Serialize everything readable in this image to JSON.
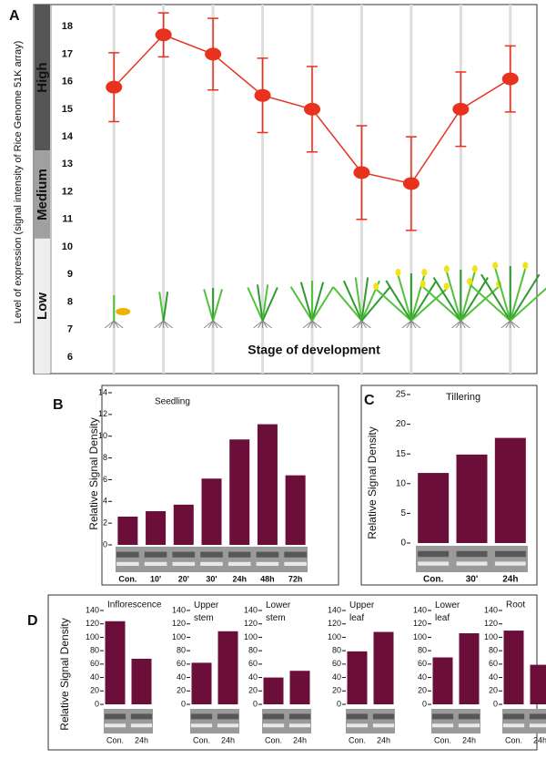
{
  "chart_data": [
    {
      "type": "line",
      "panel": "A",
      "ylabel": "Level of expression (signal intensity of Rice Genome 51K array)",
      "xlabel": "Stage of development",
      "categories": [
        null,
        null,
        null,
        null,
        null,
        null,
        null,
        null,
        null
      ],
      "series": [
        {
          "color": "#e8321e",
          "values": [
            15.8,
            17.7,
            17.0,
            15.5,
            15.0,
            12.7,
            12.3,
            15.0,
            16.1
          ],
          "errors": [
            1.25,
            0.8,
            1.3,
            1.35,
            1.55,
            1.7,
            1.7,
            1.35,
            1.2
          ]
        }
      ],
      "ylim": [
        5.4,
        18.8
      ],
      "yticks": [
        6,
        7,
        8,
        9,
        10,
        11,
        12,
        13,
        14,
        15,
        16,
        17,
        18
      ],
      "levels": [
        {
          "label": "High",
          "range": [
            13.5,
            18.8
          ],
          "color": "#555555"
        },
        {
          "label": "Medium",
          "range": [
            10.3,
            13.5
          ],
          "color": "#a0a0a0"
        },
        {
          "label": "Low",
          "range": [
            5.4,
            10.3
          ],
          "color": "#eeeeee"
        }
      ]
    },
    {
      "type": "bar",
      "panel": "B",
      "title": "Seedling",
      "ylabel": "Relative Signal Density",
      "categories": [
        "Con.",
        "10'",
        "20'",
        "30'",
        "24h",
        "48h",
        "72h"
      ],
      "values": [
        2.6,
        3.1,
        3.7,
        6.1,
        9.7,
        11.1,
        6.4
      ],
      "color": "#6b0f3a",
      "ylim": [
        0,
        14
      ],
      "yticks": [
        0,
        2,
        4,
        6,
        8,
        10,
        12,
        14
      ]
    },
    {
      "type": "bar",
      "panel": "C",
      "title": "Tillering",
      "ylabel": "Relative Signal Density",
      "categories": [
        "Con.",
        "30'",
        "24h"
      ],
      "values": [
        11.8,
        14.9,
        17.7
      ],
      "color": "#6b0f3a",
      "ylim": [
        0,
        25
      ],
      "yticks": [
        0,
        5,
        10,
        15,
        20,
        25
      ]
    },
    {
      "type": "bar",
      "panel": "D",
      "title": "Inflorescence",
      "ylabel": "Relative Signal Density",
      "categories": [
        "Con.",
        "24h"
      ],
      "values": [
        124,
        68
      ],
      "color": "#6b0f3a",
      "ylim": [
        0,
        140
      ],
      "yticks": [
        0,
        20,
        40,
        60,
        80,
        100,
        120,
        140
      ]
    },
    {
      "type": "bar",
      "title": "Upper stem",
      "categories": [
        "Con.",
        "24h"
      ],
      "values": [
        62,
        109
      ],
      "color": "#6b0f3a",
      "ylim": [
        0,
        140
      ],
      "yticks": [
        0,
        20,
        40,
        60,
        80,
        100,
        120,
        140
      ]
    },
    {
      "type": "bar",
      "title": "Lower stem",
      "categories": [
        "Con.",
        "24h"
      ],
      "values": [
        40,
        50
      ],
      "color": "#6b0f3a",
      "ylim": [
        0,
        140
      ],
      "yticks": [
        0,
        20,
        40,
        60,
        80,
        100,
        120,
        140
      ]
    },
    {
      "type": "bar",
      "title": "Upper leaf",
      "categories": [
        "Con.",
        "24h"
      ],
      "values": [
        79,
        108
      ],
      "color": "#6b0f3a",
      "ylim": [
        0,
        140
      ],
      "yticks": [
        0,
        20,
        40,
        60,
        80,
        100,
        120,
        140
      ]
    },
    {
      "type": "bar",
      "title": "Lower leaf",
      "categories": [
        "Con.",
        "24h"
      ],
      "values": [
        70,
        106
      ],
      "color": "#6b0f3a",
      "ylim": [
        0,
        140
      ],
      "yticks": [
        0,
        20,
        40,
        60,
        80,
        100,
        120,
        140
      ]
    },
    {
      "type": "bar",
      "title": "Root",
      "categories": [
        "Con.",
        "24h"
      ],
      "values": [
        110,
        59
      ],
      "color": "#6b0f3a",
      "ylim": [
        0,
        140
      ],
      "yticks": [
        0,
        20,
        40,
        60,
        80,
        100,
        120,
        140
      ]
    }
  ]
}
